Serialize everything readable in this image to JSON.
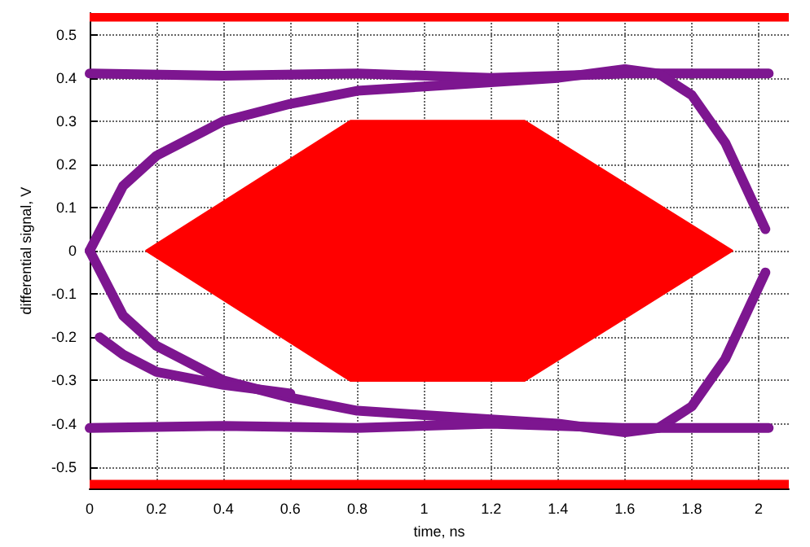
{
  "chart_data": {
    "type": "line",
    "xlabel": "time, ns",
    "ylabel": "differential signal, V",
    "xlim": [
      0,
      2.09
    ],
    "xticks": [
      0,
      0.2,
      0.4,
      0.6,
      0.8,
      1,
      1.2,
      1.4,
      1.6,
      1.8,
      2
    ],
    "ylim": [
      -0.55,
      0.55
    ],
    "yticks": [
      -0.5,
      -0.4,
      -0.3,
      -0.2,
      -0.1,
      0,
      0.1,
      0.2,
      0.3,
      0.4,
      0.5
    ],
    "grid": true,
    "marker": "none",
    "line_style": "solid",
    "series": [
      {
        "color": "#7d1690",
        "x": [
          0,
          0.4,
          0.8,
          1.2,
          1.6,
          2.03
        ],
        "values": [
          0.41,
          0.405,
          0.41,
          0.4,
          0.41,
          0.41
        ]
      },
      {
        "color": "#7d1690",
        "x": [
          0,
          0.1,
          0.2,
          0.4,
          0.6,
          0.8,
          1.0,
          1.2,
          1.4,
          1.6,
          1.7,
          1.8,
          1.9,
          2.02
        ],
        "values": [
          0,
          0.15,
          0.22,
          0.3,
          0.34,
          0.37,
          0.38,
          0.39,
          0.4,
          0.42,
          0.41,
          0.36,
          0.25,
          0.05
        ]
      },
      {
        "color": "#7d1690",
        "x": [
          0,
          0.1,
          0.2,
          0.4,
          0.6,
          0.8,
          1.0,
          1.2,
          1.4,
          1.6,
          1.7,
          1.8,
          1.9,
          2.02
        ],
        "values": [
          0,
          -0.15,
          -0.22,
          -0.3,
          -0.34,
          -0.37,
          -0.38,
          -0.39,
          -0.4,
          -0.42,
          -0.41,
          -0.36,
          -0.25,
          -0.05
        ]
      },
      {
        "color": "#7d1690",
        "x": [
          0,
          0.4,
          0.8,
          1.2,
          1.6,
          2.03
        ],
        "values": [
          -0.41,
          -0.405,
          -0.41,
          -0.4,
          -0.41,
          -0.41
        ]
      },
      {
        "color": "#7d1690",
        "x": [
          0.03,
          0.1,
          0.2,
          0.4,
          0.6
        ],
        "values": [
          -0.2,
          -0.24,
          -0.28,
          -0.31,
          -0.33
        ]
      },
      {
        "type": "area",
        "color": "#ff0000",
        "x": [
          0.17,
          0.78,
          1.3,
          1.92,
          1.3,
          0.78,
          0.17
        ],
        "values": [
          0,
          0.3,
          0.3,
          0,
          -0.3,
          -0.3,
          0
        ]
      }
    ],
    "bands": [
      {
        "axis": "y",
        "from": 0.53,
        "to": 0.55,
        "color": "#ff0000"
      },
      {
        "axis": "y",
        "from": -0.55,
        "to": -0.53,
        "color": "#ff0000"
      }
    ]
  }
}
